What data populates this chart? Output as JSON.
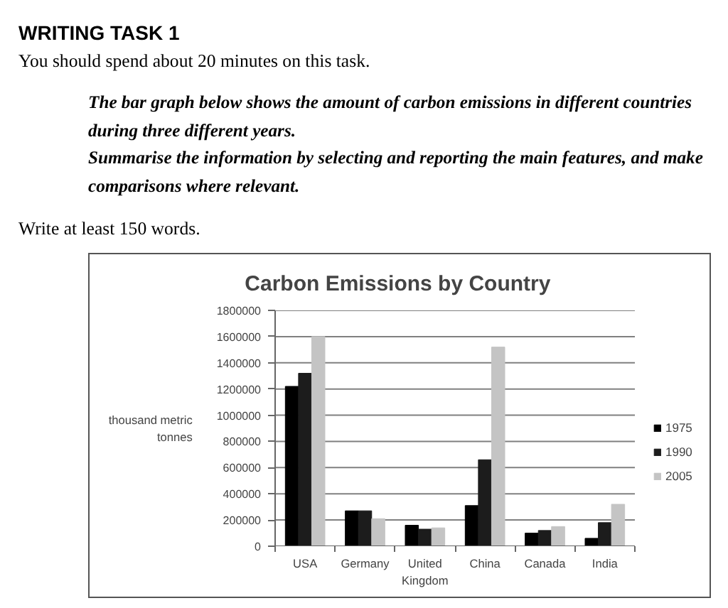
{
  "chart_data": {
    "type": "bar",
    "title": "Carbon Emissions by Country",
    "ylabel": "thousand metric tonnes",
    "annotations": [
      "WRITING TASK 1",
      "You should spend about 20 minutes on this task.",
      "The bar graph below shows the amount of carbon emissions in different countries during three different years.",
      "Summarise the information by selecting and reporting the main features, and make comparisons where relevant.",
      "Write at least 150 words."
    ],
    "categories": [
      "USA",
      "Germany",
      "United Kingdom",
      "China",
      "Canada",
      "India"
    ],
    "series": [
      {
        "name": "1975",
        "color": "#000000",
        "values": [
          1220000,
          270000,
          160000,
          310000,
          100000,
          60000
        ]
      },
      {
        "name": "1990",
        "color": "#1c1c1c",
        "values": [
          1320000,
          270000,
          130000,
          660000,
          120000,
          180000
        ]
      },
      {
        "name": "2005",
        "color": "#c4c4c4",
        "values": [
          1600000,
          210000,
          140000,
          1520000,
          150000,
          320000
        ]
      }
    ],
    "ylim": [
      0,
      1800000
    ],
    "yticks": [
      0,
      200000,
      400000,
      600000,
      800000,
      1000000,
      1200000,
      1400000,
      1600000,
      1800000
    ],
    "grid": "y",
    "legend": "right"
  }
}
